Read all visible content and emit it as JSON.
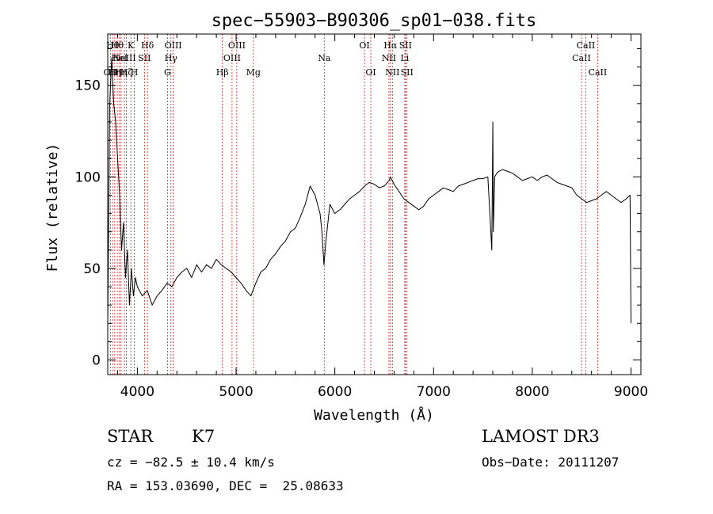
{
  "chart_data": {
    "type": "line",
    "title": "spec−55903−B90306_sp01−038.fits",
    "xlabel": "Wavelength (Å)",
    "ylabel": "Flux (relative)",
    "xlim": [
      3700,
      9100
    ],
    "ylim": [
      -8,
      178
    ],
    "x_ticks": [
      4000,
      5000,
      6000,
      7000,
      8000,
      9000
    ],
    "y_ticks": [
      0,
      50,
      100,
      150
    ],
    "grid": false,
    "series": [
      {
        "name": "flux",
        "x": [
          3700,
          3720,
          3740,
          3760,
          3780,
          3800,
          3820,
          3840,
          3860,
          3880,
          3900,
          3920,
          3940,
          3960,
          3980,
          4000,
          4050,
          4100,
          4150,
          4200,
          4250,
          4300,
          4350,
          4400,
          4450,
          4500,
          4550,
          4600,
          4650,
          4700,
          4750,
          4800,
          4850,
          4900,
          4950,
          5000,
          5050,
          5100,
          5150,
          5200,
          5250,
          5300,
          5350,
          5400,
          5450,
          5500,
          5550,
          5600,
          5650,
          5700,
          5750,
          5800,
          5850,
          5870,
          5890,
          5910,
          5930,
          5950,
          6000,
          6050,
          6100,
          6150,
          6200,
          6250,
          6300,
          6350,
          6400,
          6450,
          6500,
          6550,
          6563,
          6600,
          6650,
          6700,
          6750,
          6800,
          6850,
          6900,
          6950,
          7000,
          7050,
          7100,
          7150,
          7200,
          7250,
          7300,
          7350,
          7400,
          7450,
          7500,
          7550,
          7590,
          7600,
          7605,
          7620,
          7640,
          7660,
          7700,
          7750,
          7800,
          7850,
          7900,
          7950,
          8000,
          8050,
          8100,
          8150,
          8200,
          8250,
          8300,
          8350,
          8400,
          8450,
          8500,
          8550,
          8600,
          8650,
          8700,
          8750,
          8800,
          8850,
          8900,
          8950,
          8990,
          9000
        ],
        "values": [
          20,
          140,
          165,
          140,
          130,
          110,
          90,
          60,
          75,
          45,
          60,
          30,
          50,
          35,
          45,
          40,
          35,
          38,
          30,
          35,
          38,
          42,
          40,
          45,
          48,
          50,
          45,
          52,
          48,
          52,
          50,
          55,
          52,
          50,
          48,
          45,
          42,
          38,
          35,
          42,
          48,
          50,
          55,
          58,
          62,
          65,
          70,
          72,
          78,
          85,
          95,
          90,
          80,
          70,
          52,
          65,
          75,
          85,
          80,
          82,
          85,
          88,
          90,
          92,
          95,
          97,
          96,
          94,
          95,
          98,
          100,
          96,
          92,
          88,
          86,
          84,
          82,
          84,
          88,
          90,
          92,
          94,
          93,
          92,
          95,
          96,
          97,
          98,
          99,
          99,
          100,
          60,
          130,
          70,
          100,
          102,
          103,
          104,
          103,
          102,
          100,
          98,
          99,
          100,
          98,
          100,
          101,
          99,
          97,
          96,
          95,
          94,
          90,
          88,
          86,
          87,
          88,
          90,
          92,
          90,
          88,
          86,
          88,
          90,
          20
        ]
      }
    ],
    "lines": [
      {
        "wl": 3727,
        "label": "OII",
        "row": 3
      },
      {
        "wl": 3750,
        "label": "Hθ",
        "row": 1
      },
      {
        "wl": 3771,
        "label": "Hη",
        "row": 3
      },
      {
        "wl": 3797,
        "label": "Hθ",
        "row": 1
      },
      {
        "wl": 3819,
        "label": "HeI",
        "row": 2
      },
      {
        "wl": 3835,
        "label": "Hη",
        "row": 3
      },
      {
        "wl": 3869,
        "label": "NeIII",
        "row": 2
      },
      {
        "wl": 3889,
        "label": "Hζ",
        "row": 3
      },
      {
        "wl": 3934,
        "label": "K",
        "row": 1
      },
      {
        "wl": 3969,
        "label": "H",
        "row": 3
      },
      {
        "wl": 4072,
        "label": "SII",
        "row": 2
      },
      {
        "wl": 4102,
        "label": "Hδ",
        "row": 1
      },
      {
        "wl": 4305,
        "label": "G",
        "row": 3
      },
      {
        "wl": 4340,
        "label": "Hγ",
        "row": 2
      },
      {
        "wl": 4363,
        "label": "OIII",
        "row": 1
      },
      {
        "wl": 4861,
        "label": "Hβ",
        "row": 3
      },
      {
        "wl": 4959,
        "label": "OIII",
        "row": 2
      },
      {
        "wl": 5007,
        "label": "OIII",
        "row": 1
      },
      {
        "wl": 5175,
        "label": "Mg",
        "row": 3
      },
      {
        "wl": 5893,
        "label": "Na",
        "row": 2
      },
      {
        "wl": 6300,
        "label": "OI",
        "row": 1
      },
      {
        "wl": 6364,
        "label": "OI",
        "row": 3
      },
      {
        "wl": 6548,
        "label": "NII",
        "row": 2
      },
      {
        "wl": 6563,
        "label": "Hα",
        "row": 1
      },
      {
        "wl": 6583,
        "label": "NII",
        "row": 3
      },
      {
        "wl": 6708,
        "label": "Li",
        "row": 2
      },
      {
        "wl": 6716,
        "label": "SII",
        "row": 1
      },
      {
        "wl": 6731,
        "label": "SII",
        "row": 3
      },
      {
        "wl": 8498,
        "label": "CaII",
        "row": 2
      },
      {
        "wl": 8542,
        "label": "CaII",
        "row": 1
      },
      {
        "wl": 8662,
        "label": "CaII",
        "row": 3
      }
    ]
  },
  "info": {
    "object_class": "STAR",
    "subclass": "K7",
    "survey": "LAMOST DR3",
    "cz": "cz = −82.5 ± 10.4 km/s",
    "obs_date": "Obs−Date: 20111207",
    "coords": "RA = 153.03690, DEC =  25.08633"
  },
  "colors": {
    "line_marker": "#cc2222",
    "spectrum": "#000000",
    "axes": "#000000"
  }
}
